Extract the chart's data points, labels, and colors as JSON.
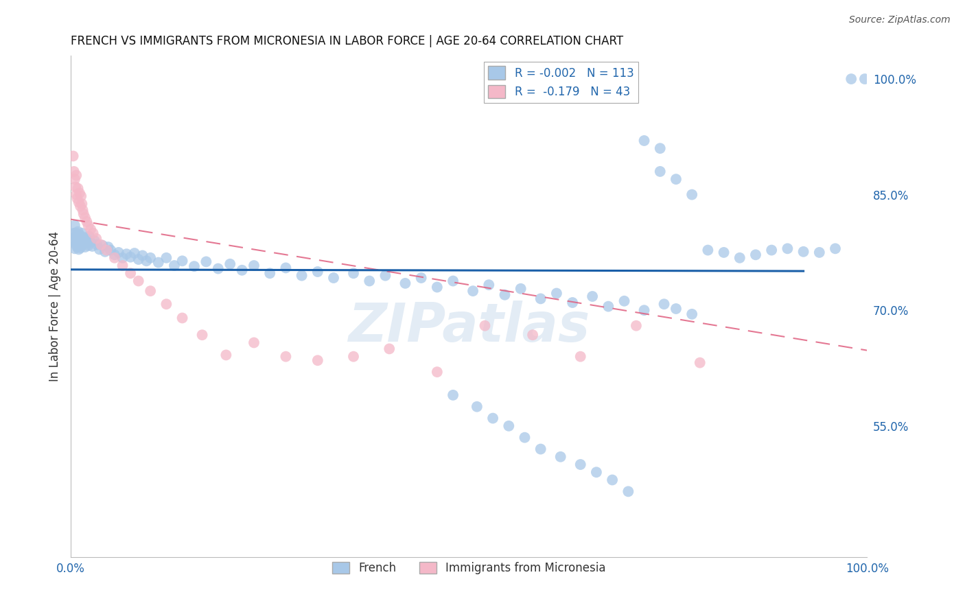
{
  "title": "FRENCH VS IMMIGRANTS FROM MICRONESIA IN LABOR FORCE | AGE 20-64 CORRELATION CHART",
  "source": "Source: ZipAtlas.com",
  "ylabel": "In Labor Force | Age 20-64",
  "xlim": [
    0.0,
    1.0
  ],
  "ylim": [
    0.38,
    1.03
  ],
  "ytick_positions": [
    0.55,
    0.7,
    0.85,
    1.0
  ],
  "ytick_labels": [
    "55.0%",
    "70.0%",
    "85.0%",
    "100.0%"
  ],
  "color_blue": "#a8c8e8",
  "color_pink": "#f4b8c8",
  "color_blue_line": "#1a5fa8",
  "color_pink_line": "#e06080",
  "watermark": "ZIPatlas",
  "legend_line1": "R = -0.002   N = 113",
  "legend_line2": "R =  -0.179   N = 43",
  "blue_x": [
    0.003,
    0.004,
    0.005,
    0.005,
    0.006,
    0.006,
    0.007,
    0.007,
    0.008,
    0.008,
    0.009,
    0.009,
    0.01,
    0.01,
    0.011,
    0.011,
    0.012,
    0.012,
    0.013,
    0.014,
    0.014,
    0.015,
    0.015,
    0.016,
    0.017,
    0.018,
    0.019,
    0.02,
    0.021,
    0.022,
    0.023,
    0.025,
    0.027,
    0.03,
    0.033,
    0.036,
    0.04,
    0.043,
    0.047,
    0.05,
    0.055,
    0.06,
    0.065,
    0.07,
    0.075,
    0.08,
    0.085,
    0.09,
    0.095,
    0.1,
    0.11,
    0.12,
    0.13,
    0.14,
    0.155,
    0.17,
    0.185,
    0.2,
    0.215,
    0.23,
    0.25,
    0.27,
    0.29,
    0.31,
    0.33,
    0.355,
    0.375,
    0.395,
    0.42,
    0.44,
    0.46,
    0.48,
    0.505,
    0.525,
    0.545,
    0.565,
    0.59,
    0.61,
    0.63,
    0.655,
    0.675,
    0.695,
    0.72,
    0.745,
    0.76,
    0.78,
    0.8,
    0.82,
    0.84,
    0.86,
    0.88,
    0.9,
    0.92,
    0.94,
    0.96,
    0.98,
    0.997,
    0.74,
    0.76,
    0.78,
    0.72,
    0.74,
    0.48,
    0.51,
    0.53,
    0.55,
    0.57,
    0.59,
    0.615,
    0.64,
    0.66,
    0.68,
    0.7
  ],
  "blue_y": [
    0.79,
    0.8,
    0.78,
    0.81,
    0.79,
    0.8,
    0.785,
    0.795,
    0.782,
    0.798,
    0.788,
    0.802,
    0.779,
    0.795,
    0.784,
    0.798,
    0.781,
    0.793,
    0.788,
    0.792,
    0.8,
    0.785,
    0.795,
    0.79,
    0.788,
    0.782,
    0.793,
    0.787,
    0.791,
    0.784,
    0.796,
    0.788,
    0.783,
    0.79,
    0.785,
    0.779,
    0.784,
    0.776,
    0.782,
    0.778,
    0.772,
    0.775,
    0.768,
    0.773,
    0.769,
    0.774,
    0.766,
    0.771,
    0.764,
    0.768,
    0.762,
    0.768,
    0.758,
    0.764,
    0.757,
    0.763,
    0.754,
    0.76,
    0.752,
    0.758,
    0.748,
    0.755,
    0.745,
    0.75,
    0.742,
    0.748,
    0.738,
    0.745,
    0.735,
    0.742,
    0.73,
    0.738,
    0.725,
    0.733,
    0.72,
    0.728,
    0.715,
    0.722,
    0.71,
    0.718,
    0.705,
    0.712,
    0.7,
    0.708,
    0.702,
    0.695,
    0.778,
    0.775,
    0.768,
    0.772,
    0.778,
    0.78,
    0.776,
    0.775,
    0.78,
    1.0,
    1.0,
    0.88,
    0.87,
    0.85,
    0.92,
    0.91,
    0.59,
    0.575,
    0.56,
    0.55,
    0.535,
    0.52,
    0.51,
    0.5,
    0.49,
    0.48,
    0.465
  ],
  "pink_x": [
    0.003,
    0.004,
    0.005,
    0.006,
    0.007,
    0.007,
    0.008,
    0.009,
    0.01,
    0.011,
    0.012,
    0.013,
    0.014,
    0.015,
    0.016,
    0.018,
    0.02,
    0.022,
    0.025,
    0.028,
    0.032,
    0.038,
    0.045,
    0.055,
    0.065,
    0.075,
    0.085,
    0.1,
    0.12,
    0.14,
    0.165,
    0.195,
    0.23,
    0.27,
    0.31,
    0.355,
    0.4,
    0.46,
    0.52,
    0.58,
    0.64,
    0.71,
    0.79
  ],
  "pink_y": [
    0.9,
    0.88,
    0.87,
    0.86,
    0.85,
    0.875,
    0.845,
    0.858,
    0.84,
    0.852,
    0.835,
    0.848,
    0.838,
    0.83,
    0.825,
    0.82,
    0.815,
    0.81,
    0.805,
    0.8,
    0.793,
    0.785,
    0.778,
    0.768,
    0.758,
    0.748,
    0.738,
    0.725,
    0.708,
    0.69,
    0.668,
    0.642,
    0.658,
    0.64,
    0.635,
    0.64,
    0.65,
    0.62,
    0.68,
    0.668,
    0.64,
    0.68,
    0.632
  ]
}
